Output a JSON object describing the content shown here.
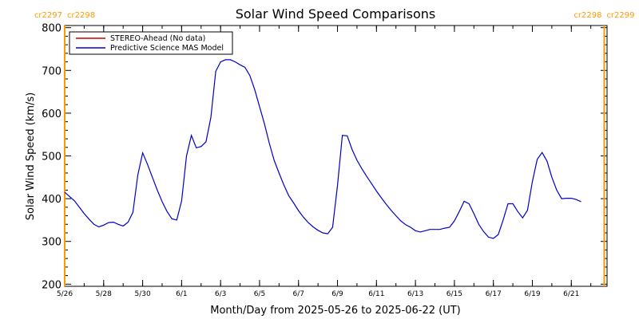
{
  "chart_data": {
    "type": "line",
    "title": "Solar Wind Speed Comparisons",
    "xlabel": "Month/Day from 2025-05-26 to 2025-06-22 (UT)",
    "ylabel": "Solar Wind Speed (km/s)",
    "xlim": [
      "2025-05-26",
      "2025-06-22T20:00"
    ],
    "ylim": [
      195,
      805
    ],
    "y_ticks": [
      200,
      300,
      400,
      500,
      600,
      700,
      800
    ],
    "x_ticks": [
      {
        "date": "2025-05-26",
        "label": "5/26"
      },
      {
        "date": "2025-05-28",
        "label": "5/28"
      },
      {
        "date": "2025-05-30",
        "label": "5/30"
      },
      {
        "date": "2025-06-01",
        "label": "6/1"
      },
      {
        "date": "2025-06-03",
        "label": "6/3"
      },
      {
        "date": "2025-06-05",
        "label": "6/5"
      },
      {
        "date": "2025-06-07",
        "label": "6/7"
      },
      {
        "date": "2025-06-09",
        "label": "6/9"
      },
      {
        "date": "2025-06-11",
        "label": "6/11"
      },
      {
        "date": "2025-06-13",
        "label": "6/13"
      },
      {
        "date": "2025-06-15",
        "label": "6/15"
      },
      {
        "date": "2025-06-17",
        "label": "6/17"
      },
      {
        "date": "2025-06-19",
        "label": "6/19"
      },
      {
        "date": "2025-06-21",
        "label": "6/21"
      }
    ],
    "grid": false,
    "legend_position": "top-left",
    "carrington_markers": [
      {
        "date": "2025-05-26T00:00",
        "label_left": "cr2297",
        "label_right": "cr2298",
        "color": "#ff9900"
      },
      {
        "date": "2025-06-22T16:30",
        "label_left": "cr2298",
        "label_right": "cr2299",
        "color": "#ff9900"
      }
    ],
    "series": [
      {
        "name": "STEREO-Ahead (No data)",
        "color": "#cc0000",
        "points": []
      },
      {
        "name": "Predictive Science MAS Model",
        "color": "#0000cc",
        "points": [
          [
            "2025-05-26T00:00",
            415
          ],
          [
            "2025-05-26T06:00",
            405
          ],
          [
            "2025-05-26T12:00",
            395
          ],
          [
            "2025-05-26T18:00",
            380
          ],
          [
            "2025-05-27T00:00",
            365
          ],
          [
            "2025-05-27T06:00",
            352
          ],
          [
            "2025-05-27T12:00",
            340
          ],
          [
            "2025-05-27T18:00",
            334
          ],
          [
            "2025-05-28T00:00",
            338
          ],
          [
            "2025-05-28T06:00",
            344
          ],
          [
            "2025-05-28T12:00",
            345
          ],
          [
            "2025-05-28T18:00",
            340
          ],
          [
            "2025-05-29T00:00",
            336
          ],
          [
            "2025-05-29T06:00",
            345
          ],
          [
            "2025-05-29T12:00",
            368
          ],
          [
            "2025-05-29T18:00",
            455
          ],
          [
            "2025-05-30T00:00",
            507
          ],
          [
            "2025-05-30T06:00",
            480
          ],
          [
            "2025-05-30T12:00",
            450
          ],
          [
            "2025-05-30T18:00",
            420
          ],
          [
            "2025-05-31T00:00",
            393
          ],
          [
            "2025-05-31T06:00",
            370
          ],
          [
            "2025-05-31T12:00",
            353
          ],
          [
            "2025-05-31T18:00",
            350
          ],
          [
            "2025-06-01T00:00",
            395
          ],
          [
            "2025-06-01T06:00",
            500
          ],
          [
            "2025-06-01T12:00",
            548
          ],
          [
            "2025-06-01T18:00",
            519
          ],
          [
            "2025-06-02T00:00",
            522
          ],
          [
            "2025-06-02T06:00",
            533
          ],
          [
            "2025-06-02T12:00",
            590
          ],
          [
            "2025-06-02T18:00",
            698
          ],
          [
            "2025-06-03T00:00",
            720
          ],
          [
            "2025-06-03T06:00",
            725
          ],
          [
            "2025-06-03T12:00",
            725
          ],
          [
            "2025-06-03T18:00",
            720
          ],
          [
            "2025-06-04T00:00",
            713
          ],
          [
            "2025-06-04T06:00",
            707
          ],
          [
            "2025-06-04T12:00",
            688
          ],
          [
            "2025-06-04T18:00",
            655
          ],
          [
            "2025-06-05T00:00",
            615
          ],
          [
            "2025-06-05T06:00",
            575
          ],
          [
            "2025-06-05T12:00",
            530
          ],
          [
            "2025-06-05T18:00",
            490
          ],
          [
            "2025-06-06T00:00",
            460
          ],
          [
            "2025-06-06T06:00",
            432
          ],
          [
            "2025-06-06T12:00",
            407
          ],
          [
            "2025-06-06T18:00",
            390
          ],
          [
            "2025-06-07T00:00",
            372
          ],
          [
            "2025-06-07T06:00",
            357
          ],
          [
            "2025-06-07T12:00",
            344
          ],
          [
            "2025-06-07T18:00",
            334
          ],
          [
            "2025-06-08T00:00",
            326
          ],
          [
            "2025-06-08T06:00",
            320
          ],
          [
            "2025-06-08T12:00",
            318
          ],
          [
            "2025-06-08T18:00",
            333
          ],
          [
            "2025-06-09T00:00",
            430
          ],
          [
            "2025-06-09T06:00",
            548
          ],
          [
            "2025-06-09T12:00",
            547
          ],
          [
            "2025-06-09T18:00",
            515
          ],
          [
            "2025-06-10T00:00",
            490
          ],
          [
            "2025-06-10T06:00",
            470
          ],
          [
            "2025-06-10T12:00",
            452
          ],
          [
            "2025-06-10T18:00",
            435
          ],
          [
            "2025-06-11T00:00",
            418
          ],
          [
            "2025-06-11T06:00",
            402
          ],
          [
            "2025-06-11T12:00",
            387
          ],
          [
            "2025-06-11T18:00",
            373
          ],
          [
            "2025-06-12T00:00",
            360
          ],
          [
            "2025-06-12T06:00",
            348
          ],
          [
            "2025-06-12T12:00",
            339
          ],
          [
            "2025-06-12T18:00",
            333
          ],
          [
            "2025-06-13T00:00",
            325
          ],
          [
            "2025-06-13T06:00",
            322
          ],
          [
            "2025-06-13T12:00",
            325
          ],
          [
            "2025-06-13T18:00",
            328
          ],
          [
            "2025-06-14T00:00",
            328
          ],
          [
            "2025-06-14T06:00",
            328
          ],
          [
            "2025-06-14T12:00",
            331
          ],
          [
            "2025-06-14T18:00",
            333
          ],
          [
            "2025-06-15T00:00",
            348
          ],
          [
            "2025-06-15T06:00",
            370
          ],
          [
            "2025-06-15T12:00",
            394
          ],
          [
            "2025-06-15T18:00",
            388
          ],
          [
            "2025-06-16T00:00",
            365
          ],
          [
            "2025-06-16T06:00",
            340
          ],
          [
            "2025-06-16T12:00",
            323
          ],
          [
            "2025-06-16T18:00",
            310
          ],
          [
            "2025-06-17T00:00",
            307
          ],
          [
            "2025-06-17T06:00",
            316
          ],
          [
            "2025-06-17T12:00",
            350
          ],
          [
            "2025-06-17T18:00",
            388
          ],
          [
            "2025-06-18T00:00",
            388
          ],
          [
            "2025-06-18T06:00",
            370
          ],
          [
            "2025-06-18T12:00",
            355
          ],
          [
            "2025-06-18T18:00",
            373
          ],
          [
            "2025-06-19T00:00",
            440
          ],
          [
            "2025-06-19T06:00",
            492
          ],
          [
            "2025-06-19T12:00",
            508
          ],
          [
            "2025-06-19T18:00",
            488
          ],
          [
            "2025-06-20T00:00",
            450
          ],
          [
            "2025-06-20T06:00",
            420
          ],
          [
            "2025-06-20T12:00",
            400
          ],
          [
            "2025-06-20T18:00",
            401
          ],
          [
            "2025-06-21T00:00",
            401
          ],
          [
            "2025-06-21T06:00",
            398
          ],
          [
            "2025-06-21T12:00",
            393
          ]
        ]
      }
    ]
  }
}
